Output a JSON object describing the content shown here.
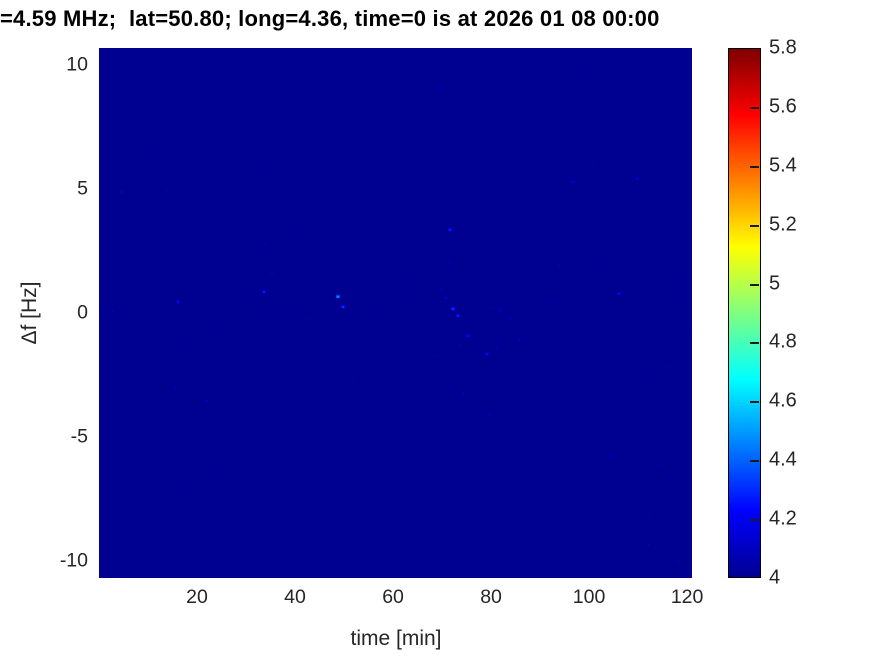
{
  "chart_data": {
    "type": "heatmap",
    "title": "=4.59 MHz;  lat=50.80; long=4.36, time=0 is at 2026 01 08 00:00",
    "xlabel": "time [min]",
    "ylabel": "Δf [Hz]",
    "xlim": [
      0,
      121
    ],
    "ylim": [
      -10.68,
      10.68
    ],
    "xticks": [
      20,
      40,
      60,
      80,
      100,
      120
    ],
    "yticks": [
      10,
      5,
      0,
      -5,
      -10
    ],
    "colormap": "jet",
    "clim": [
      4,
      5.8
    ],
    "colorbar_ticks": [
      4,
      4.2,
      4.4,
      4.6,
      4.8,
      5,
      5.2,
      5.4,
      5.6,
      5.8
    ],
    "background_value": 4.0,
    "description": "Spectrogram almost uniformly at the colormap minimum (~4, dark blue) with sparse faint noise speckles slightly above 4, loosely concentrated in a band near Δf ≈ 0–1 Hz; no strong signal present.",
    "jet_stops": [
      [
        0.0,
        "#000091"
      ],
      [
        0.125,
        "#0000FF"
      ],
      [
        0.375,
        "#00FFFF"
      ],
      [
        0.625,
        "#FFFF00"
      ],
      [
        0.875,
        "#FF0000"
      ],
      [
        1.0,
        "#7F0000"
      ]
    ],
    "bright_spots": [
      {
        "t": 48.5,
        "df": 0.7,
        "value": 4.5
      },
      {
        "t": 49.5,
        "df": 0.3,
        "value": 4.35
      },
      {
        "t": 33.5,
        "df": 0.9,
        "value": 4.3
      },
      {
        "t": 16.0,
        "df": 0.5,
        "value": 4.25
      },
      {
        "t": 71.5,
        "df": 3.4,
        "value": 4.3
      },
      {
        "t": 72.0,
        "df": 0.2,
        "value": 4.35
      },
      {
        "t": 73.0,
        "df": -0.1,
        "value": 4.3
      },
      {
        "t": 75.0,
        "df": -0.9,
        "value": 4.25
      },
      {
        "t": 79.0,
        "df": -1.6,
        "value": 4.25
      },
      {
        "t": 96.5,
        "df": 5.3,
        "value": 4.2
      },
      {
        "t": 109.5,
        "df": 5.45,
        "value": 4.2
      },
      {
        "t": 106.0,
        "df": 0.8,
        "value": 4.25
      }
    ],
    "noise": {
      "seed": 7,
      "count": 420,
      "value_min": 4.03,
      "value_max": 4.22,
      "band_center_hz": 0.5,
      "band_sigma_hz": 1.7,
      "band_fraction": 0.55
    }
  }
}
